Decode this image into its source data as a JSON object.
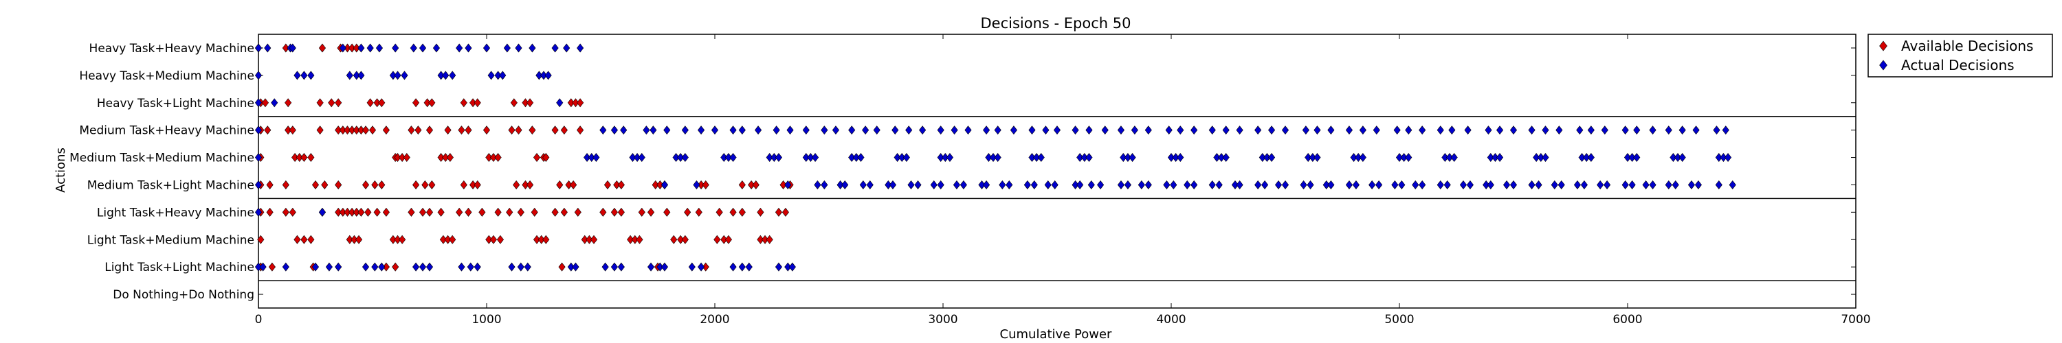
{
  "chart_data": {
    "type": "scatter",
    "title": "Decisions - Epoch 50",
    "xlabel": "Cumulative Power",
    "ylabel": "Actions",
    "xlim": [
      0,
      7000
    ],
    "x_ticks": [
      "0",
      "1000",
      "2000",
      "3000",
      "4000",
      "5000",
      "6000",
      "7000"
    ],
    "marker": "diamond",
    "grid": false,
    "legend_position": "outside-top-right",
    "group_separators_after": [
      "Heavy Task+Light Machine",
      "Medium Task+Light Machine",
      "Light Task+Light Machine"
    ],
    "categories": [
      "Heavy Task+Heavy Machine",
      "Heavy Task+Medium Machine",
      "Heavy Task+Light Machine",
      "Medium Task+Heavy Machine",
      "Medium Task+Medium Machine",
      "Medium Task+Light Machine",
      "Light Task+Heavy Machine",
      "Light Task+Medium Machine",
      "Light Task+Light Machine",
      "Do Nothing+Do Nothing"
    ],
    "series": [
      {
        "name": "Available Decisions",
        "color": "#d40000",
        "points": [
          {
            "action": "Heavy Task+Heavy Machine",
            "x": [
              0,
              120,
              280,
              360,
              390,
              410,
              430
            ]
          },
          {
            "action": "Heavy Task+Medium Machine",
            "x": []
          },
          {
            "action": "Heavy Task+Light Machine",
            "x": [
              10,
              30,
              130,
              270,
              320,
              350,
              490,
              520,
              540,
              690,
              740,
              760,
              900,
              940,
              960,
              1120,
              1170,
              1190,
              1370,
              1390,
              1410
            ]
          },
          {
            "action": "Medium Task+Heavy Machine",
            "x": [
              10,
              40,
              130,
              150,
              270,
              350,
              370,
              390,
              410,
              430,
              450,
              470,
              500,
              560,
              670,
              700,
              750,
              830,
              890,
              920,
              1000,
              1110,
              1140,
              1200,
              1300,
              1340,
              1410
            ]
          },
          {
            "action": "Medium Task+Medium Machine",
            "x": [
              10,
              160,
              180,
              200,
              230,
              600,
              610,
              630,
              650,
              800,
              820,
              840,
              1010,
              1030,
              1050,
              1220,
              1250,
              1260
            ]
          },
          {
            "action": "Medium Task+Light Machine",
            "x": [
              10,
              50,
              120,
              250,
              290,
              350,
              470,
              510,
              540,
              690,
              730,
              760,
              900,
              940,
              960,
              1130,
              1170,
              1190,
              1320,
              1360,
              1380,
              1530,
              1570,
              1590,
              1740,
              1760,
              1780,
              1940,
              1960,
              2120,
              2160,
              2180,
              2300,
              2330
            ]
          },
          {
            "action": "Light Task+Heavy Machine",
            "x": [
              10,
              50,
              120,
              150,
              280,
              350,
              370,
              390,
              410,
              430,
              450,
              480,
              520,
              560,
              670,
              720,
              750,
              800,
              880,
              920,
              980,
              1050,
              1100,
              1150,
              1210,
              1300,
              1340,
              1400,
              1510,
              1560,
              1590,
              1680,
              1720,
              1790,
              1880,
              1930,
              2020,
              2080,
              2120,
              2200,
              2280,
              2310
            ]
          },
          {
            "action": "Light Task+Medium Machine",
            "x": [
              10,
              170,
              200,
              230,
              400,
              420,
              440,
              590,
              610,
              630,
              810,
              830,
              850,
              1010,
              1030,
              1060,
              1220,
              1240,
              1260,
              1430,
              1450,
              1470,
              1630,
              1650,
              1670,
              1820,
              1850,
              1870,
              2010,
              2040,
              2060,
              2200,
              2220,
              2240
            ]
          },
          {
            "action": "Light Task+Light Machine",
            "x": [
              10,
              60,
              240,
              560,
              600,
              1330,
              1750,
              1960
            ]
          },
          {
            "action": "Do Nothing+Do Nothing",
            "x": []
          }
        ]
      },
      {
        "name": "Actual Decisions",
        "color": "#0000cc",
        "points": [
          {
            "action": "Heavy Task+Heavy Machine",
            "x": [
              0,
              40,
              140,
              150,
              370,
              450,
              490,
              530,
              600,
              680,
              720,
              780,
              880,
              920,
              1000,
              1090,
              1140,
              1200,
              1300,
              1350,
              1410
            ]
          },
          {
            "action": "Heavy Task+Medium Machine",
            "x": [
              0,
              170,
              200,
              230,
              400,
              430,
              450,
              590,
              610,
              640,
              800,
              820,
              850,
              1020,
              1050,
              1070,
              1230,
              1250,
              1270
            ]
          },
          {
            "action": "Heavy Task+Light Machine",
            "x": [
              0,
              70,
              1320
            ]
          },
          {
            "action": "Medium Task+Heavy Machine",
            "x": [
              0,
              1510,
              1560,
              1600,
              1700,
              1730,
              1790,
              1870,
              1940,
              2000,
              2080,
              2120,
              2190,
              2270,
              2330,
              2400,
              2480,
              2530,
              2600,
              2660,
              2710,
              2790,
              2850,
              2910,
              2990,
              3050,
              3110,
              3190,
              3240,
              3310,
              3390,
              3450,
              3500,
              3580,
              3640,
              3710,
              3780,
              3840,
              3900,
              3990,
              4040,
              4100,
              4180,
              4240,
              4300,
              4380,
              4440,
              4500,
              4590,
              4640,
              4700,
              4780,
              4840,
              4900,
              4990,
              5040,
              5100,
              5180,
              5230,
              5300,
              5390,
              5440,
              5500,
              5580,
              5640,
              5700,
              5790,
              5840,
              5900,
              5990,
              6040,
              6110,
              6180,
              6240,
              6300,
              6390,
              6430
            ]
          },
          {
            "action": "Medium Task+Medium Machine",
            "x": [
              0,
              1440,
              1460,
              1480,
              1640,
              1660,
              1680,
              1830,
              1850,
              1870,
              2040,
              2060,
              2080,
              2240,
              2260,
              2280,
              2400,
              2420,
              2440,
              2600,
              2620,
              2640,
              2800,
              2820,
              2840,
              2990,
              3010,
              3030,
              3200,
              3220,
              3240,
              3390,
              3410,
              3430,
              3600,
              3620,
              3640,
              3790,
              3810,
              3830,
              4000,
              4020,
              4040,
              4200,
              4220,
              4240,
              4400,
              4420,
              4440,
              4600,
              4620,
              4640,
              4800,
              4820,
              4840,
              5000,
              5020,
              5040,
              5200,
              5220,
              5240,
              5400,
              5420,
              5440,
              5600,
              5620,
              5640,
              5800,
              5820,
              5840,
              6000,
              6020,
              6040,
              6200,
              6220,
              6240,
              6400,
              6420,
              6440
            ]
          },
          {
            "action": "Medium Task+Light Machine",
            "x": [
              0,
              1780,
              1920,
              2320,
              2450,
              2480,
              2550,
              2570,
              2650,
              2680,
              2760,
              2780,
              2860,
              2890,
              2960,
              2990,
              3060,
              3090,
              3170,
              3190,
              3260,
              3290,
              3370,
              3400,
              3460,
              3490,
              3580,
              3600,
              3650,
              3690,
              3780,
              3810,
              3870,
              3900,
              3980,
              4010,
              4070,
              4100,
              4180,
              4210,
              4280,
              4300,
              4380,
              4410,
              4470,
              4500,
              4580,
              4610,
              4680,
              4700,
              4780,
              4810,
              4880,
              4910,
              4980,
              5010,
              5070,
              5100,
              5180,
              5210,
              5280,
              5310,
              5380,
              5400,
              5470,
              5500,
              5580,
              5610,
              5680,
              5710,
              5780,
              5810,
              5880,
              5910,
              5990,
              6020,
              6080,
              6110,
              6180,
              6210,
              6280,
              6310,
              6400,
              6460
            ]
          },
          {
            "action": "Light Task+Heavy Machine",
            "x": [
              0,
              280
            ]
          },
          {
            "action": "Light Task+Medium Machine",
            "x": []
          },
          {
            "action": "Light Task+Light Machine",
            "x": [
              0,
              20,
              120,
              250,
              310,
              350,
              470,
              510,
              540,
              690,
              720,
              750,
              890,
              930,
              960,
              1110,
              1150,
              1180,
              1370,
              1390,
              1520,
              1560,
              1590,
              1720,
              1760,
              1780,
              1900,
              1940,
              2080,
              2120,
              2150,
              2280,
              2320,
              2340
            ]
          },
          {
            "action": "Do Nothing+Do Nothing",
            "x": []
          }
        ]
      }
    ]
  }
}
